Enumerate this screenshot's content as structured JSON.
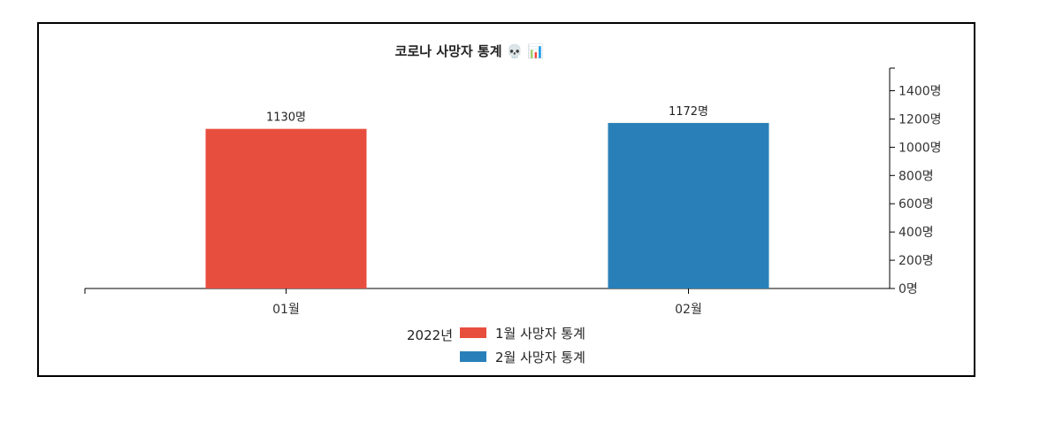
{
  "chart_data": {
    "type": "bar",
    "title": "코로나 사망자 통계 💀 📊",
    "categories": [
      "01월",
      "02월"
    ],
    "values": [
      1130,
      1172
    ],
    "data_labels": [
      "1130명",
      "1172명"
    ],
    "colors": [
      "#e84e3e",
      "#2980b9"
    ],
    "y_axis_position": "right",
    "ylim": [
      0,
      1560
    ],
    "y_ticks": [
      0,
      200,
      400,
      600,
      800,
      1000,
      1200,
      1400
    ],
    "y_tick_suffix": "명",
    "grid": false,
    "legend": {
      "placement": "bottom",
      "title": "2022년",
      "entries": [
        {
          "label": "1월 사망자 통계",
          "color": "#e84e3e"
        },
        {
          "label": "2월 사망자 통계",
          "color": "#2980b9"
        }
      ]
    }
  }
}
